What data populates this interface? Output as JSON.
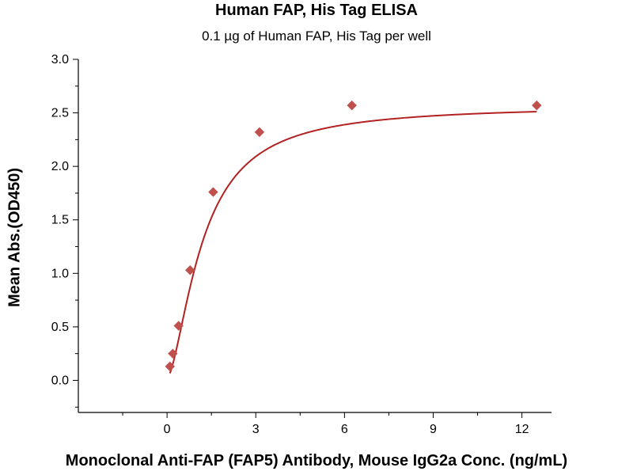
{
  "chart_data": {
    "type": "scatter",
    "title": "Human FAP, His Tag ELISA",
    "subtitle": "0.1 µg of Human FAP, His Tag per well",
    "xlabel": "Monoclonal Anti-FAP (FAP5) Antibody, Mouse IgG2a Conc. (ng/mL)",
    "ylabel": "Mean Abs.(OD450)",
    "xlim": [
      -3,
      13
    ],
    "ylim": [
      -0.3,
      3.0
    ],
    "xticks": [
      "0",
      "3",
      "6",
      "9",
      "12"
    ],
    "xtick_values": [
      0,
      3,
      6,
      9,
      12
    ],
    "yticks": [
      "0.0",
      "0.5",
      "1.0",
      "1.5",
      "2.0",
      "2.5",
      "3.0"
    ],
    "ytick_values": [
      0.0,
      0.5,
      1.0,
      1.5,
      2.0,
      2.5,
      3.0
    ],
    "grid": false,
    "series": [
      {
        "marker": "diamond",
        "color": "#c0504d",
        "points": [
          {
            "x": 0.098,
            "y": 0.13
          },
          {
            "x": 0.195,
            "y": 0.25
          },
          {
            "x": 0.39,
            "y": 0.51
          },
          {
            "x": 0.78,
            "y": 1.03
          },
          {
            "x": 1.56,
            "y": 1.76
          },
          {
            "x": 3.125,
            "y": 2.32
          },
          {
            "x": 6.25,
            "y": 2.57
          },
          {
            "x": 12.5,
            "y": 2.57
          }
        ],
        "fit": {
          "type": "four-parameter logistic",
          "color": "#b22222"
        }
      }
    ]
  }
}
